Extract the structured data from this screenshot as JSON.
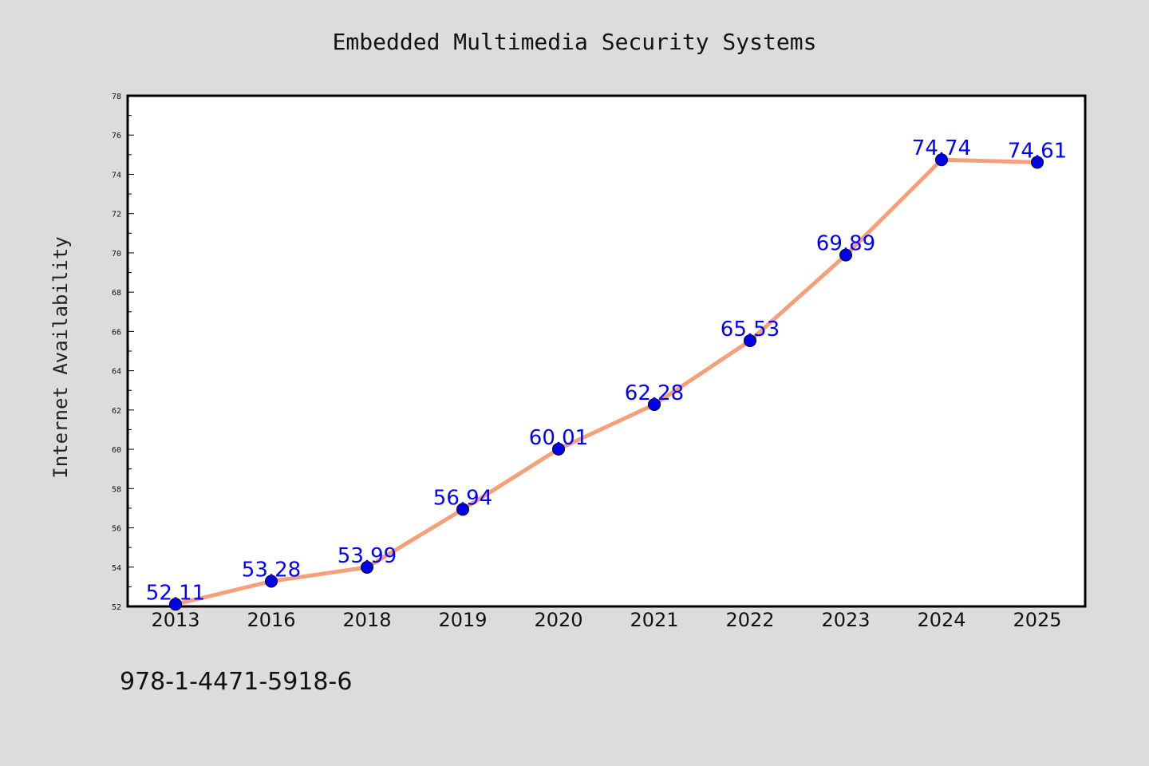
{
  "chart_data": {
    "type": "line",
    "title": "Embedded Multimedia Security Systems",
    "xlabel": "",
    "ylabel": "Internet Availability",
    "categories": [
      "2013",
      "2016",
      "2018",
      "2019",
      "2020",
      "2021",
      "2022",
      "2023",
      "2024",
      "2025"
    ],
    "series": [
      {
        "values": [
          52.11,
          53.28,
          53.99,
          56.94,
          60.01,
          62.28,
          65.53,
          69.89,
          74.74,
          74.61
        ],
        "labels": [
          "52.11",
          "53.28",
          "53.99",
          "56.94",
          "60.01",
          "62.28",
          "65.53",
          "69.89",
          "74.74",
          "74.61"
        ],
        "line_color": "#f4a07a",
        "marker_color": "#0000ee",
        "label_color": "#0000ff"
      }
    ],
    "ylim": [
      52,
      78
    ],
    "yticks": [
      "52",
      "54",
      "56",
      "58",
      "60",
      "62",
      "64",
      "66",
      "68",
      "70",
      "72",
      "74",
      "76",
      "78"
    ],
    "grid": false,
    "legend": "none"
  },
  "footer": {
    "text": "978-1-4471-5918-6"
  },
  "colors": {
    "background": "#dcdcdc",
    "plot_background": "#ffffff"
  }
}
